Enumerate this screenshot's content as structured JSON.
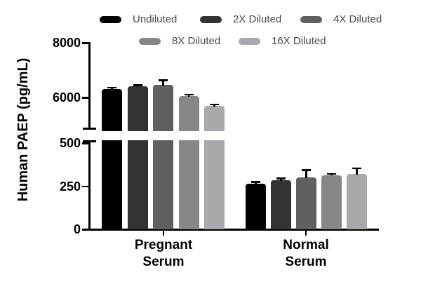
{
  "chart_data": {
    "type": "bar",
    "title": "",
    "ylabel": "Human PAEP (pg/mL)",
    "xlabel": "",
    "categories": [
      "Pregnant\nSerum",
      "Normal\nSerum"
    ],
    "series": [
      {
        "name": "Undiluted",
        "color": "#000000",
        "values": [
          6300,
          265
        ],
        "errors": [
          60,
          10
        ]
      },
      {
        "name": "2X Diluted",
        "color": "#333333",
        "values": [
          6400,
          285
        ],
        "errors": [
          50,
          10
        ]
      },
      {
        "name": "4X Diluted",
        "color": "#606060",
        "values": [
          6450,
          300
        ],
        "errors": [
          180,
          45
        ]
      },
      {
        "name": "8X Diluted",
        "color": "#878787",
        "values": [
          6050,
          315
        ],
        "errors": [
          60,
          8
        ]
      },
      {
        "name": "16X Diluted",
        "color": "#a9a9ad",
        "values": [
          5700,
          320
        ],
        "errors": [
          50,
          35
        ]
      }
    ],
    "y_axis": {
      "broken": true,
      "upper_ticks": [
        "6000",
        "8000"
      ],
      "upper_tick_values": [
        6000,
        8000
      ],
      "upper_range": [
        4850,
        8000
      ],
      "lower_ticks": [
        "0",
        "250",
        "500"
      ],
      "lower_tick_values": [
        0,
        250,
        500
      ],
      "lower_range": [
        0,
        500
      ]
    },
    "legend": {
      "position": "top",
      "rows": [
        [
          0,
          1,
          2
        ],
        [
          3,
          4
        ]
      ]
    },
    "grid": false,
    "axis_color": "#000000",
    "background_color": "#ffffff"
  }
}
